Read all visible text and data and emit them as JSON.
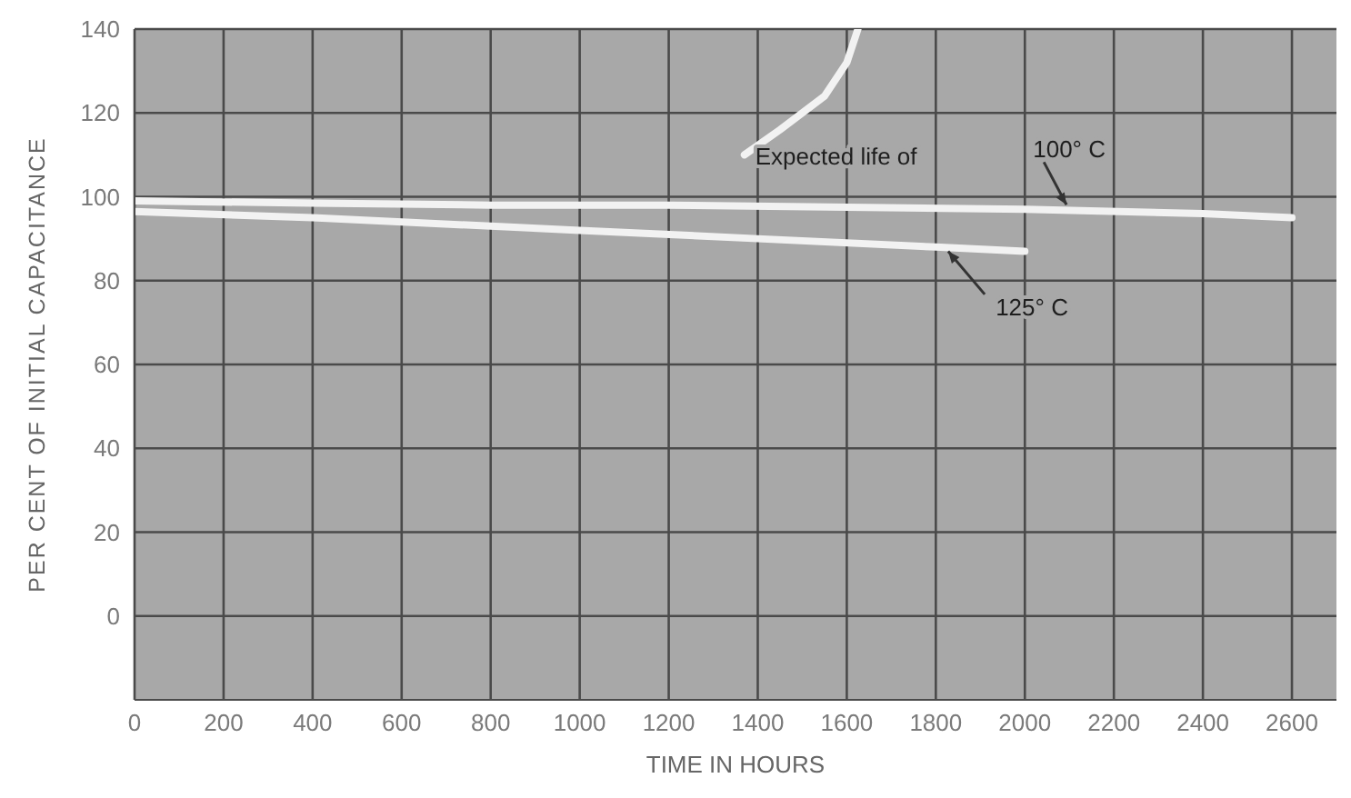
{
  "chart_data": {
    "type": "line",
    "xlabel": "TIME IN HOURS",
    "ylabel": "PER CENT OF INITIAL CAPACITANCE",
    "xlim": [
      0,
      2700
    ],
    "xticks": [
      0,
      200,
      400,
      600,
      800,
      1000,
      1200,
      1400,
      1600,
      1800,
      2000,
      2200,
      2400,
      2600
    ],
    "ylim": [
      -20,
      140
    ],
    "yticks": [
      0,
      20,
      40,
      60,
      80,
      100,
      120,
      140
    ],
    "grid": true,
    "marker": "none",
    "line_style": "solid",
    "series": [
      {
        "color": "#f2f2f2",
        "x": [
          0,
          400,
          800,
          1200,
          1600,
          2000,
          2400,
          2600
        ],
        "values": [
          99,
          98.5,
          98,
          98,
          97.5,
          97,
          96,
          95
        ]
      },
      {
        "color": "#f2f2f2",
        "x": [
          0,
          400,
          800,
          1000,
          1400,
          1800,
          2000
        ],
        "values": [
          96.5,
          95,
          93,
          92,
          90,
          88,
          87
        ]
      },
      {
        "color": "#f2f2f2",
        "x": [
          1370,
          1450,
          1550,
          1600,
          1625
        ],
        "values": [
          110,
          116,
          124,
          132,
          140
        ]
      }
    ],
    "annotations": [
      {
        "text": "Expected life of",
        "x": 1370,
        "y": 110
      },
      {
        "text": "100° C",
        "x": 2100,
        "y": 97
      },
      {
        "text": "125° C",
        "x": 1820,
        "y": 88
      }
    ]
  }
}
